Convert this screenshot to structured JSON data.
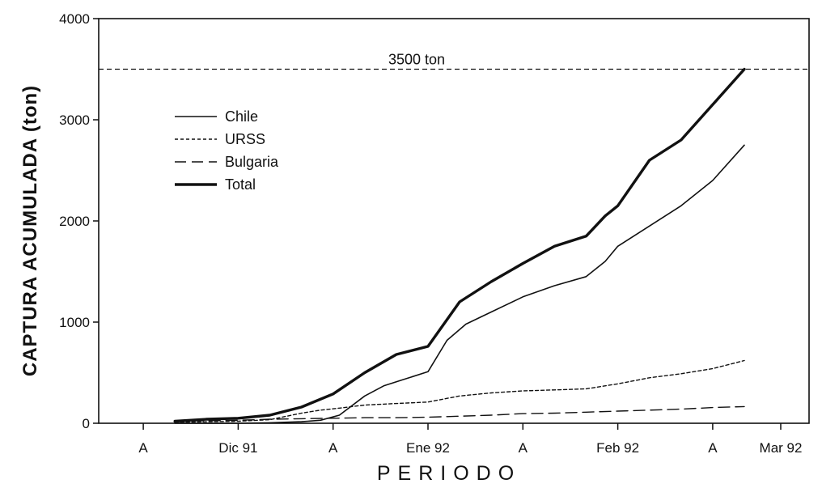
{
  "chart_data": {
    "type": "line",
    "xlabel": "PERIODO",
    "ylabel": "CAPTURA  ACUMULADA (ton)",
    "ylim": [
      0,
      4000
    ],
    "yticks": [
      0,
      1000,
      2000,
      3000,
      4000
    ],
    "xlim": [
      0,
      10
    ],
    "xticks": [
      {
        "x": 0.5,
        "label": "A"
      },
      {
        "x": 2,
        "label": "Dic 91"
      },
      {
        "x": 3.5,
        "label": "A"
      },
      {
        "x": 5,
        "label": "Ene 92"
      },
      {
        "x": 6.5,
        "label": "A"
      },
      {
        "x": 8,
        "label": "Feb 92"
      },
      {
        "x": 9.5,
        "label": "A"
      },
      {
        "x": 11,
        "label": "Mar 92"
      }
    ],
    "reference_line": {
      "y": 3500,
      "label": "3500 ton",
      "style": "dashed"
    },
    "legend_position": "upper-left",
    "grid": false,
    "series": [
      {
        "name": "Chile",
        "style": "solid",
        "x": [
          1.0,
          1.5,
          2.0,
          2.5,
          3.0,
          3.3,
          3.6,
          4.0,
          4.3,
          4.6,
          5.0,
          5.3,
          5.6,
          6.0,
          6.5,
          7.0,
          7.5,
          7.8,
          8.0,
          8.5,
          9.0,
          9.5,
          10.0
        ],
        "y": [
          0,
          0,
          0,
          5,
          15,
          30,
          80,
          270,
          370,
          430,
          510,
          820,
          980,
          1100,
          1250,
          1360,
          1450,
          1600,
          1750,
          1950,
          2150,
          2400,
          2750
        ]
      },
      {
        "name": "URSS",
        "style": "short-dash",
        "x": [
          1.0,
          1.5,
          2.0,
          2.5,
          3.0,
          3.3,
          3.6,
          4.0,
          4.5,
          5.0,
          5.5,
          6.0,
          6.5,
          7.0,
          7.5,
          8.0,
          8.5,
          9.0,
          9.5,
          10.0
        ],
        "y": [
          10,
          15,
          20,
          35,
          100,
          130,
          150,
          180,
          195,
          210,
          270,
          300,
          320,
          330,
          340,
          390,
          450,
          490,
          540,
          620
        ]
      },
      {
        "name": "Bulgaria",
        "style": "long-dash",
        "x": [
          1.0,
          1.5,
          2.0,
          2.5,
          3.0,
          3.5,
          4.0,
          4.5,
          5.0,
          5.5,
          6.0,
          6.5,
          7.0,
          7.5,
          8.0,
          8.5,
          9.0,
          9.5,
          10.0
        ],
        "y": [
          20,
          25,
          30,
          40,
          45,
          50,
          55,
          55,
          60,
          70,
          80,
          95,
          100,
          110,
          120,
          130,
          140,
          155,
          165
        ]
      },
      {
        "name": "Total",
        "style": "thick-solid",
        "x": [
          1.0,
          1.5,
          2.0,
          2.5,
          3.0,
          3.5,
          4.0,
          4.5,
          5.0,
          5.5,
          6.0,
          6.5,
          7.0,
          7.5,
          7.8,
          8.0,
          8.5,
          9.0,
          9.5,
          10.0
        ],
        "y": [
          20,
          40,
          50,
          80,
          160,
          290,
          500,
          680,
          760,
          1200,
          1400,
          1580,
          1750,
          1850,
          2050,
          2150,
          2600,
          2800,
          3150,
          3500
        ]
      }
    ]
  }
}
